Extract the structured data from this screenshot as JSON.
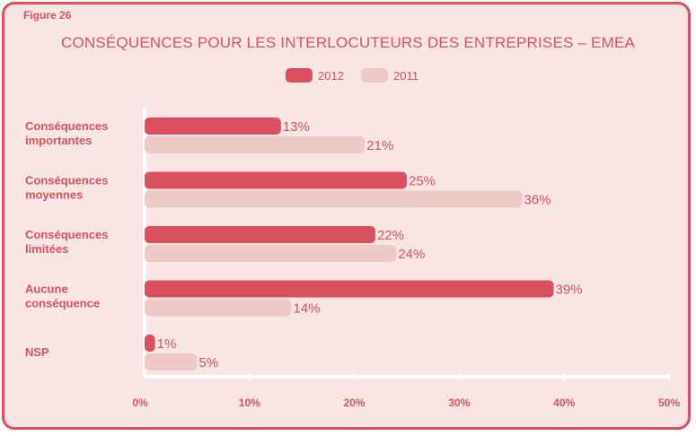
{
  "figure_label": "Figure 26",
  "title": "CONSÉQUENCES POUR LES INTERLOCUTEURS DES ENTREPRISES – EMEA",
  "colors": {
    "series_2012": "#d9505f",
    "series_2011": "#eecac6",
    "text": "#d9505f",
    "value_text": "#d9505f",
    "background": "#f9e6e4",
    "frame": "#d9505f",
    "axis": "#ffffff"
  },
  "chart_data": {
    "type": "bar",
    "orientation": "horizontal",
    "categories": [
      [
        "Conséquences",
        "importantes"
      ],
      [
        "Conséquences",
        "moyennes"
      ],
      [
        "Conséquences",
        "limitées"
      ],
      [
        "Aucune",
        "conséquence"
      ],
      [
        "NSP"
      ]
    ],
    "series": [
      {
        "name": "2012",
        "values": [
          13,
          25,
          22,
          39,
          1
        ],
        "labels": [
          "13%",
          "25%",
          "22%",
          "39%",
          "1%"
        ]
      },
      {
        "name": "2011",
        "values": [
          21,
          36,
          24,
          14,
          5
        ],
        "labels": [
          "21%",
          "36%",
          "24%",
          "14%",
          "5%"
        ]
      }
    ],
    "xlim": [
      0,
      50
    ],
    "xticks": [
      "0%",
      "10%",
      "20%",
      "30%",
      "40%",
      "50%"
    ],
    "legend_position": "top-center",
    "grid": false
  }
}
